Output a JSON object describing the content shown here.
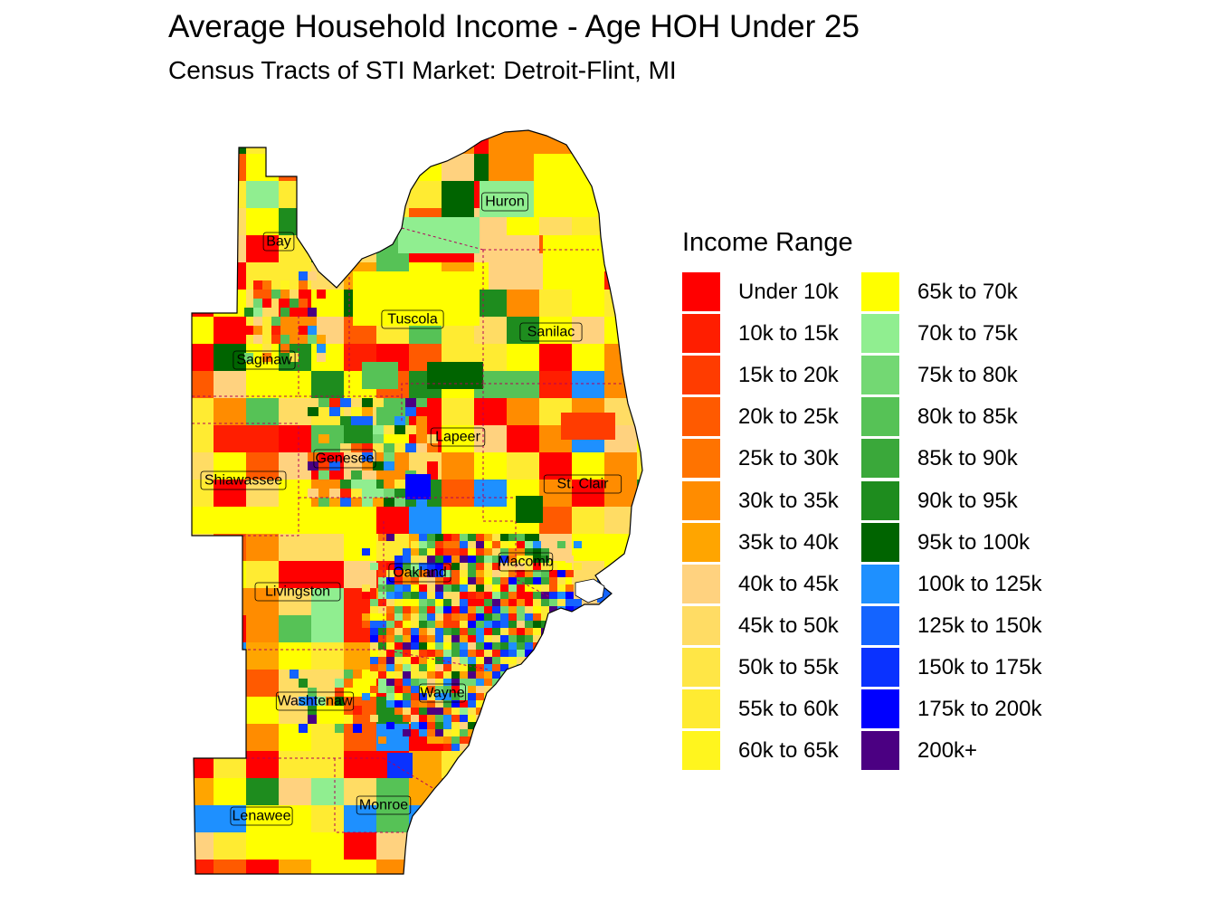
{
  "title": "Average Household Income - Age HOH Under 25",
  "subtitle": "Census Tracts of STI Market: Detroit-Flint, MI",
  "legend": {
    "title": "Income Range",
    "items": [
      {
        "label": "Under 10k",
        "color": "#ff0000"
      },
      {
        "label": "10k to 15k",
        "color": "#ff1e00"
      },
      {
        "label": "15k to 20k",
        "color": "#ff3c00"
      },
      {
        "label": "20k to 25k",
        "color": "#ff5a00"
      },
      {
        "label": "25k to 30k",
        "color": "#ff7300"
      },
      {
        "label": "30k to 35k",
        "color": "#ff8c00"
      },
      {
        "label": "35k to 40k",
        "color": "#ffa500"
      },
      {
        "label": "40k to 45k",
        "color": "#ffd27f"
      },
      {
        "label": "45k to 50k",
        "color": "#ffdc64"
      },
      {
        "label": "50k to 55k",
        "color": "#ffe646"
      },
      {
        "label": "55k to 60k",
        "color": "#ffeb32"
      },
      {
        "label": "60k to 65k",
        "color": "#fff51e"
      },
      {
        "label": "65k to 70k",
        "color": "#ffff00"
      },
      {
        "label": "70k to 75k",
        "color": "#90ee90"
      },
      {
        "label": "75k to 80k",
        "color": "#73d873"
      },
      {
        "label": "80k to 85k",
        "color": "#56c256"
      },
      {
        "label": "85k to 90k",
        "color": "#3aa83a"
      },
      {
        "label": "90k to 95k",
        "color": "#1e8c1e"
      },
      {
        "label": "95k to 100k",
        "color": "#006400"
      },
      {
        "label": "100k to 125k",
        "color": "#1e90ff"
      },
      {
        "label": "125k to 150k",
        "color": "#1464ff"
      },
      {
        "label": "150k to 175k",
        "color": "#0a32ff"
      },
      {
        "label": "175k to 200k",
        "color": "#0000ff"
      },
      {
        "label": "200k+",
        "color": "#4b0082"
      }
    ]
  },
  "counties": [
    {
      "name": "Huron"
    },
    {
      "name": "Bay"
    },
    {
      "name": "Tuscola"
    },
    {
      "name": "Sanilac"
    },
    {
      "name": "Saginaw"
    },
    {
      "name": "Lapeer"
    },
    {
      "name": "Genesee"
    },
    {
      "name": "Shiawassee"
    },
    {
      "name": "St. Clair"
    },
    {
      "name": "Macomb"
    },
    {
      "name": "Oakland"
    },
    {
      "name": "Livingston"
    },
    {
      "name": "Wayne"
    },
    {
      "name": "Washtenaw"
    },
    {
      "name": "Monroe"
    },
    {
      "name": "Lenawee"
    }
  ]
}
